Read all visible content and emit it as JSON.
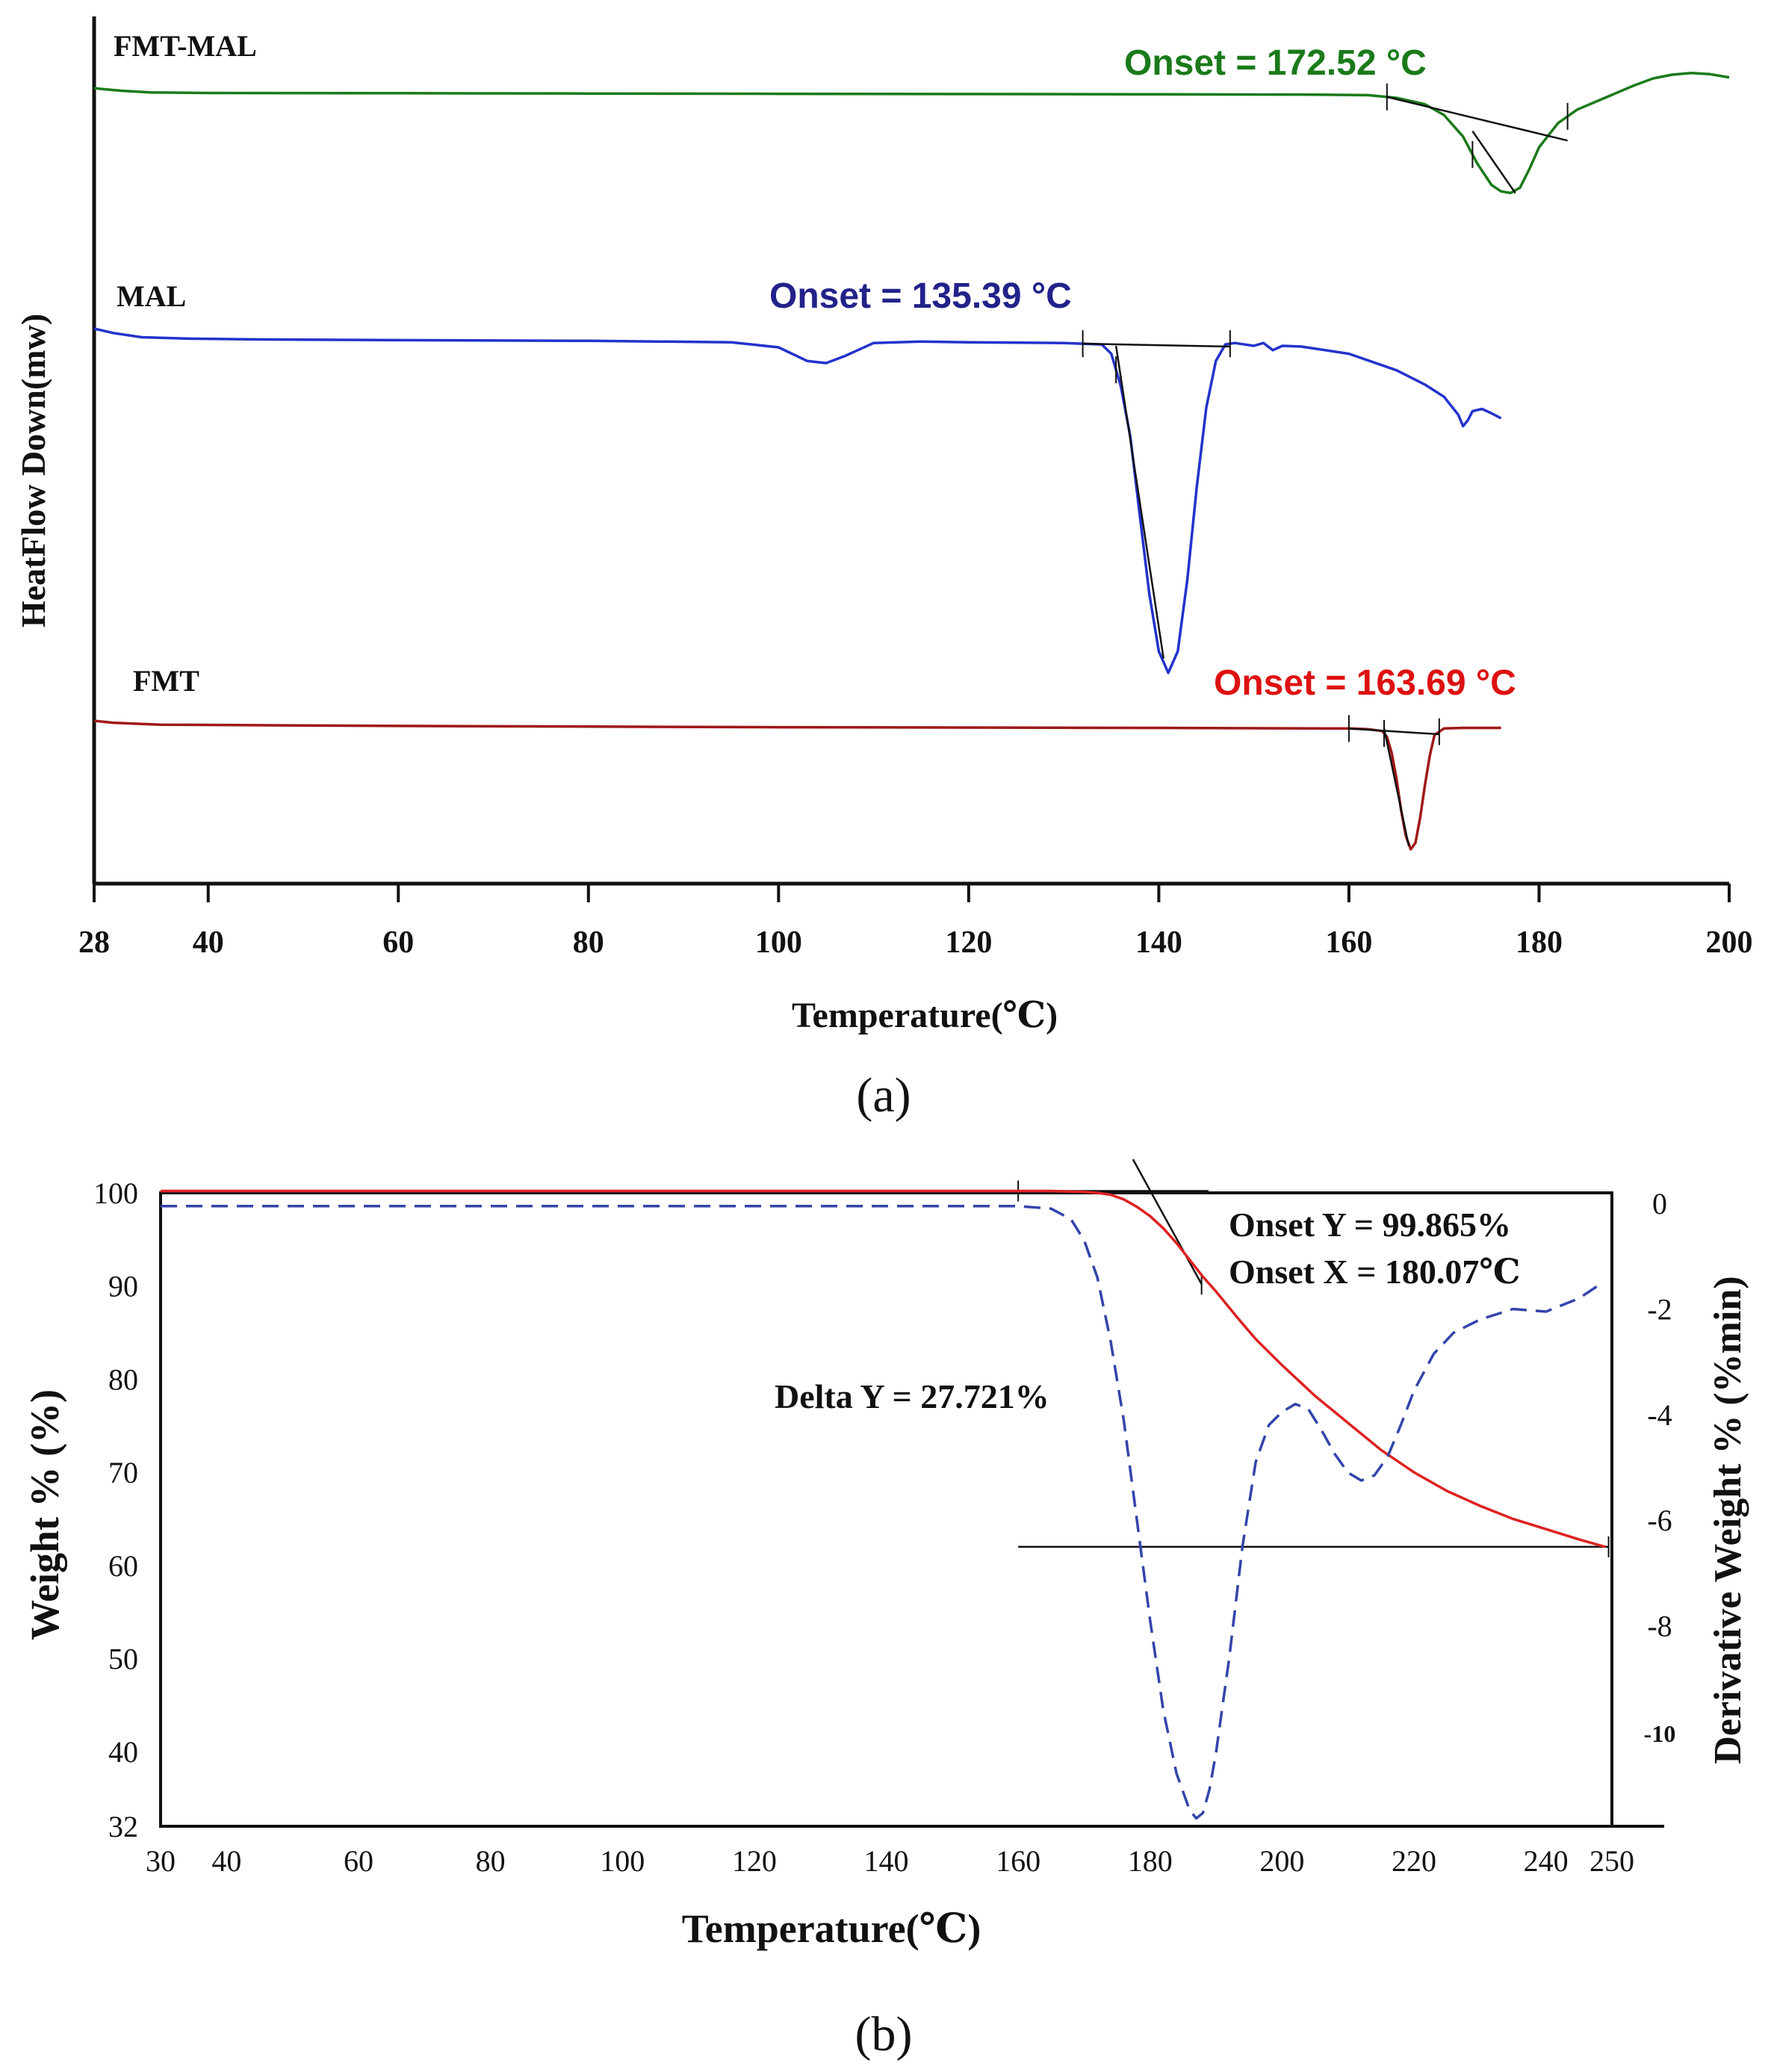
{
  "chart_data": [
    {
      "id": "a",
      "type": "line",
      "panel_label": "(a)",
      "xlabel": "Temperature(℃)",
      "ylabel": "HeatFlow Down(mw)",
      "xlim": [
        28,
        200
      ],
      "x_ticks": [
        28,
        40,
        60,
        80,
        100,
        120,
        140,
        160,
        180,
        200
      ],
      "series": [
        {
          "name": "FMT-MAL",
          "color": "#1a7a1a",
          "baseline": 0,
          "x": [
            28,
            29,
            31,
            34,
            40,
            60,
            80,
            100,
            120,
            140,
            155,
            162,
            165,
            168,
            170,
            172,
            173.5,
            175,
            176,
            177,
            178,
            179,
            180,
            182,
            184,
            186,
            188,
            190,
            192,
            194,
            196,
            198,
            200
          ],
          "y": [
            0,
            -0.2,
            -0.5,
            -0.8,
            -0.9,
            -0.95,
            -1.0,
            -1.05,
            -1.1,
            -1.15,
            -1.2,
            -1.3,
            -1.8,
            -3,
            -5,
            -9,
            -14,
            -18,
            -19.2,
            -19.5,
            -18.5,
            -15,
            -11,
            -6.5,
            -4.0,
            -2.5,
            -1.0,
            0.5,
            1.8,
            2.5,
            2.8,
            2.6,
            2.0
          ],
          "label_text": "FMT-MAL",
          "onset_label": "Onset = 172.52 °C"
        },
        {
          "name": "MAL",
          "color": "#2233cc",
          "baseline": 0,
          "x": [
            28,
            30,
            33,
            38,
            45,
            60,
            80,
            95,
            100,
            103,
            105,
            107,
            110,
            115,
            120,
            130,
            134,
            135,
            136,
            137,
            138,
            139,
            140,
            141,
            142,
            143,
            144,
            145,
            146,
            147,
            148,
            150,
            151,
            152,
            153,
            155,
            160,
            165,
            168,
            170,
            171.5,
            172,
            172.5,
            173,
            174,
            175,
            176
          ],
          "y": [
            0,
            -0.6,
            -1.2,
            -1.4,
            -1.5,
            -1.6,
            -1.7,
            -1.9,
            -2.6,
            -4.5,
            -4.8,
            -3.8,
            -2.0,
            -1.8,
            -1.9,
            -2.0,
            -2.2,
            -3.5,
            -8,
            -15,
            -26,
            -37,
            -45,
            -48,
            -45,
            -35,
            -22,
            -11,
            -4.5,
            -2.2,
            -2.0,
            -2.4,
            -2.0,
            -3.0,
            -2.4,
            -2.5,
            -3.5,
            -5.8,
            -7.8,
            -9.5,
            -12,
            -13.6,
            -12.8,
            -11.5,
            -11.2,
            -11.8,
            -12.5
          ],
          "label_text": "MAL",
          "onset_label": "Onset = 135.39 °C"
        },
        {
          "name": "FMT",
          "color": "#a01818",
          "baseline": 0,
          "x": [
            28,
            30,
            35,
            60,
            100,
            140,
            160,
            162,
            163.5,
            164,
            164.5,
            165,
            165.5,
            166,
            166.5,
            167,
            167.5,
            168,
            168.5,
            169,
            170,
            172,
            176
          ],
          "y": [
            0,
            -0.3,
            -0.6,
            -0.8,
            -1.0,
            -1.1,
            -1.2,
            -1.3,
            -1.6,
            -2.5,
            -5,
            -9,
            -14,
            -18,
            -20,
            -19,
            -15,
            -10,
            -5.5,
            -2.2,
            -1.2,
            -1.1,
            -1.1
          ],
          "label_text": "FMT",
          "onset_label": "Onset = 163.69 °C"
        }
      ]
    },
    {
      "id": "b",
      "type": "line",
      "panel_label": "(b)",
      "xlabel": "Temperature(℃)",
      "ylabel": "Weight % (%)",
      "y2label": "Derivative Weight  % (%min)",
      "xlim": [
        30,
        250
      ],
      "ylim": [
        32,
        100
      ],
      "y2lim": [
        -11.8,
        0.2
      ],
      "x_ticks": [
        30,
        40,
        60,
        80,
        100,
        120,
        140,
        160,
        180,
        200,
        220,
        240,
        250
      ],
      "y_ticks": [
        32,
        40,
        50,
        60,
        70,
        80,
        90,
        100
      ],
      "y2_ticks": [
        0,
        -2,
        -4,
        -6,
        -8,
        -10
      ],
      "series": [
        {
          "name": "Weight %",
          "axis": "left",
          "color": "#dd2222",
          "style": "solid",
          "x": [
            30,
            60,
            100,
            140,
            160,
            165,
            170,
            172,
            174,
            176,
            178,
            180,
            182,
            184,
            186,
            188,
            190,
            193,
            196,
            200,
            205,
            210,
            215,
            220,
            225,
            230,
            235,
            240,
            245,
            249
          ],
          "y": [
            100.2,
            100.2,
            100.2,
            100.2,
            100.2,
            100.2,
            100.1,
            100.0,
            99.8,
            99.3,
            98.5,
            97.5,
            96.2,
            94.6,
            92.8,
            91.0,
            89.4,
            86.8,
            84.3,
            81.5,
            78.2,
            75.3,
            72.4,
            70.0,
            68.0,
            66.4,
            65.0,
            63.9,
            62.8,
            62.0
          ]
        },
        {
          "name": "Derivative Weight",
          "axis": "right",
          "color": "#3344aa",
          "style": "dashed",
          "x": [
            30,
            60,
            100,
            140,
            160,
            165,
            168,
            170,
            172,
            174,
            176,
            178,
            180,
            182,
            184,
            186,
            187,
            188,
            189,
            190,
            191,
            192,
            194,
            196,
            198,
            200,
            202,
            204,
            206,
            208,
            210,
            212,
            214,
            216,
            218,
            220,
            223,
            226,
            230,
            235,
            240,
            245,
            248
          ],
          "y": [
            -0.05,
            -0.05,
            -0.05,
            -0.05,
            -0.05,
            -0.1,
            -0.3,
            -0.7,
            -1.4,
            -2.6,
            -4.1,
            -6.0,
            -7.9,
            -9.6,
            -10.8,
            -11.5,
            -11.65,
            -11.55,
            -11.1,
            -10.4,
            -9.5,
            -8.6,
            -6.5,
            -4.9,
            -4.2,
            -3.95,
            -3.8,
            -3.9,
            -4.3,
            -4.75,
            -5.1,
            -5.25,
            -5.15,
            -4.8,
            -4.2,
            -3.55,
            -2.85,
            -2.45,
            -2.2,
            -2.0,
            -2.05,
            -1.8,
            -1.55
          ]
        }
      ],
      "annotations": {
        "onset_y": "Onset Y = 99.865%",
        "onset_x": "Onset X = 180.07℃",
        "delta_y": "Delta Y = 27.721%"
      },
      "onset_line": {
        "x": 160,
        "y": 100.2
      },
      "delta_line_y": 62.0
    }
  ]
}
